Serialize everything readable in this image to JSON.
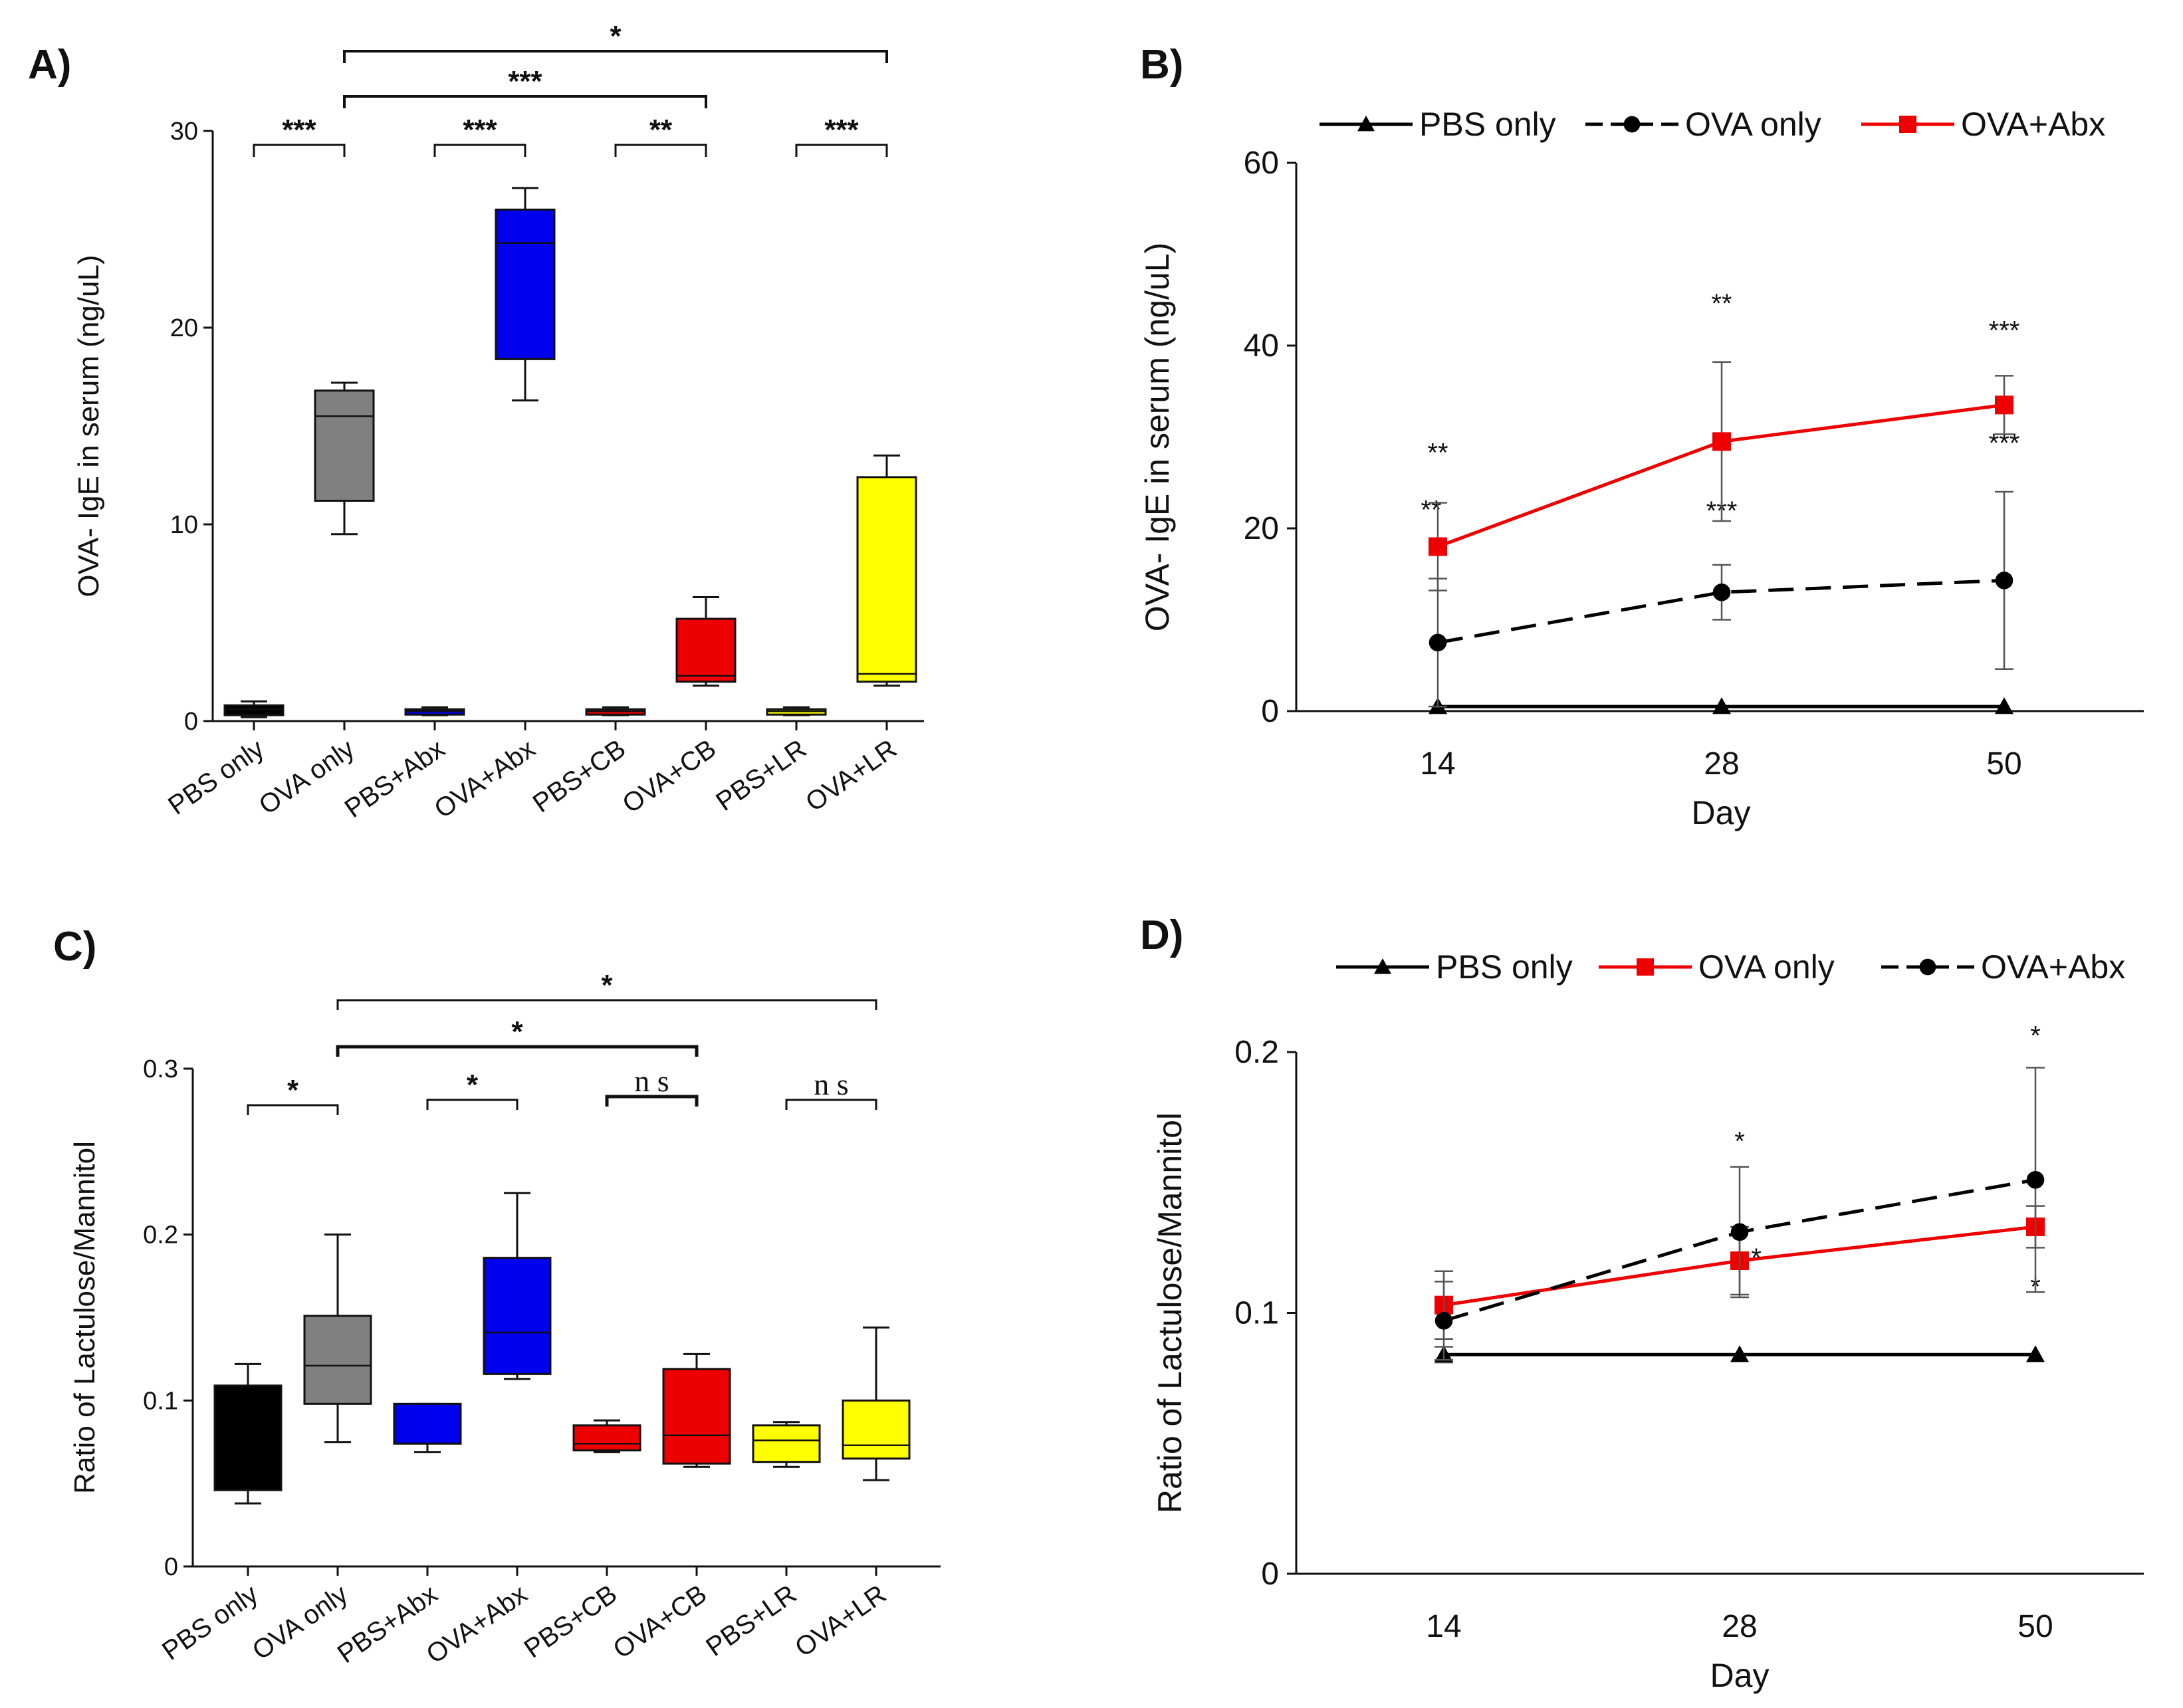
{
  "chart_data": [
    {
      "panel": "A)",
      "type": "box",
      "ylabel": "OVA- IgE in serum (ng/uL)",
      "ylim": [
        0,
        30
      ],
      "yticks": [
        0,
        10,
        20,
        30
      ],
      "categories": [
        "PBS only",
        "OVA only",
        "PBS+Abx",
        "OVA+Abx",
        "PBS+CB",
        "OVA+CB",
        "PBS+LR",
        "OVA+LR"
      ],
      "boxes": [
        {
          "min": 0.2,
          "q1": 0.3,
          "median": 0.6,
          "q3": 0.8,
          "max": 1.0,
          "color": "#000000"
        },
        {
          "min": 9.5,
          "q1": 11.2,
          "median": 15.5,
          "q3": 16.8,
          "max": 17.2,
          "color": "#808080"
        },
        {
          "min": 0.3,
          "q1": 0.4,
          "median": 0.5,
          "q3": 0.6,
          "max": 0.7,
          "color": "#0000ee"
        },
        {
          "min": 16.3,
          "q1": 18.4,
          "median": 24.3,
          "q3": 26.0,
          "max": 27.1,
          "color": "#0000ee"
        },
        {
          "min": 0.3,
          "q1": 0.4,
          "median": 0.5,
          "q3": 0.6,
          "max": 0.7,
          "color": "#ee0000"
        },
        {
          "min": 1.8,
          "q1": 2.0,
          "median": 2.3,
          "q3": 5.2,
          "max": 6.3,
          "color": "#ee0000"
        },
        {
          "min": 0.3,
          "q1": 0.4,
          "median": 0.5,
          "q3": 0.6,
          "max": 0.7,
          "color": "#ffff00"
        },
        {
          "min": 1.8,
          "q1": 2.0,
          "median": 2.4,
          "q3": 12.4,
          "max": 13.5,
          "color": "#ffff00"
        }
      ],
      "brackets": [
        {
          "from": 0,
          "to": 1,
          "label": "***"
        },
        {
          "from": 2,
          "to": 3,
          "label": "***"
        },
        {
          "from": 4,
          "to": 5,
          "label": "**"
        },
        {
          "from": 6,
          "to": 7,
          "label": "***"
        },
        {
          "from": 1,
          "to": 5,
          "label": "***"
        },
        {
          "from": 1,
          "to": 7,
          "label": "*"
        }
      ]
    },
    {
      "panel": "B)",
      "type": "line",
      "ylabel": "OVA- IgE in serum (ng/uL)",
      "xlabel": "Day",
      "x": [
        14,
        28,
        50
      ],
      "ylim": [
        0,
        60
      ],
      "yticks": [
        0,
        20,
        40,
        60
      ],
      "series": [
        {
          "name": "PBS only",
          "marker": "triangle",
          "dashed": false,
          "color": "#000000",
          "values": [
            0.5,
            0.5,
            0.5
          ],
          "err": [
            0,
            0,
            0
          ],
          "labels": [
            "",
            "",
            ""
          ]
        },
        {
          "name": "OVA  only",
          "marker": "circle",
          "dashed": true,
          "color": "#000000",
          "values": [
            7.5,
            13.0,
            14.3
          ],
          "err": [
            7.0,
            3.0,
            9.7
          ],
          "labels": [
            "**",
            "***",
            "***"
          ]
        },
        {
          "name": "OVA+Abx",
          "marker": "square",
          "dashed": false,
          "color": "#ee0000",
          "values": [
            18.0,
            29.5,
            33.5
          ],
          "err": [
            4.8,
            8.7,
            3.2
          ],
          "labels": [
            "**",
            "**",
            "***"
          ]
        }
      ]
    },
    {
      "panel": "C)",
      "type": "box",
      "ylabel": "Ratio of Lactulose/Mannitol",
      "ylim": [
        0,
        0.3
      ],
      "yticks": [
        "0",
        "0.1",
        "0.2",
        "0.3"
      ],
      "categories": [
        "PBS only",
        "OVA only",
        "PBS+Abx",
        "OVA+Abx",
        "PBS+CB",
        "OVA+CB",
        "PBS+LR",
        "OVA+LR"
      ],
      "boxes": [
        {
          "min": 0.038,
          "q1": 0.046,
          "median": 0.046,
          "q3": 0.109,
          "max": 0.122,
          "color": "#000000"
        },
        {
          "min": 0.075,
          "q1": 0.098,
          "median": 0.121,
          "q3": 0.151,
          "max": 0.2,
          "color": "#808080"
        },
        {
          "min": 0.069,
          "q1": 0.074,
          "median": 0.098,
          "q3": 0.098,
          "max": 0.098,
          "color": "#0000ee"
        },
        {
          "min": 0.113,
          "q1": 0.116,
          "median": 0.141,
          "q3": 0.186,
          "max": 0.225,
          "color": "#0000ee"
        },
        {
          "min": 0.069,
          "q1": 0.07,
          "median": 0.074,
          "q3": 0.085,
          "max": 0.088,
          "color": "#ee0000"
        },
        {
          "min": 0.06,
          "q1": 0.062,
          "median": 0.079,
          "q3": 0.119,
          "max": 0.128,
          "color": "#ee0000"
        },
        {
          "min": 0.06,
          "q1": 0.063,
          "median": 0.076,
          "q3": 0.085,
          "max": 0.087,
          "color": "#ffff00"
        },
        {
          "min": 0.052,
          "q1": 0.065,
          "median": 0.073,
          "q3": 0.1,
          "max": 0.144,
          "color": "#ffff00"
        }
      ],
      "brackets": [
        {
          "from": 0,
          "to": 1,
          "label": "*",
          "ns": false
        },
        {
          "from": 2,
          "to": 3,
          "label": "*",
          "ns": false
        },
        {
          "from": 4,
          "to": 5,
          "label": "n s",
          "ns": true
        },
        {
          "from": 6,
          "to": 7,
          "label": "n s",
          "ns": true
        },
        {
          "from": 1,
          "to": 5,
          "label": "*",
          "ns": false
        },
        {
          "from": 1,
          "to": 7,
          "label": "*",
          "ns": false
        }
      ]
    },
    {
      "panel": "D)",
      "type": "line",
      "ylabel": "Ratio of Lactulose/Mannitol",
      "xlabel": "Day",
      "x": [
        14,
        28,
        50
      ],
      "ylim": [
        0,
        0.2
      ],
      "yticks": [
        "0",
        "0.1",
        "0.2"
      ],
      "series": [
        {
          "name": "PBS only",
          "marker": "triangle",
          "dashed": false,
          "color": "#000000",
          "values": [
            0.084,
            0.084,
            0.084
          ],
          "err": [
            0.003,
            0,
            0
          ],
          "labels": [
            "",
            "",
            ""
          ]
        },
        {
          "name": "OVA only",
          "marker": "square",
          "dashed": false,
          "color": "#ee0000",
          "values": [
            0.103,
            0.12,
            0.133
          ],
          "err": [
            0.013,
            0.013,
            0.008
          ],
          "labels": [
            "",
            "*",
            "*"
          ]
        },
        {
          "name": "OVA+Abx",
          "marker": "circle",
          "dashed": true,
          "color": "#000000",
          "values": [
            0.097,
            0.131,
            0.151
          ],
          "err": [
            0.015,
            0.025,
            0.043
          ],
          "labels": [
            "",
            "*",
            "*"
          ]
        }
      ]
    }
  ]
}
